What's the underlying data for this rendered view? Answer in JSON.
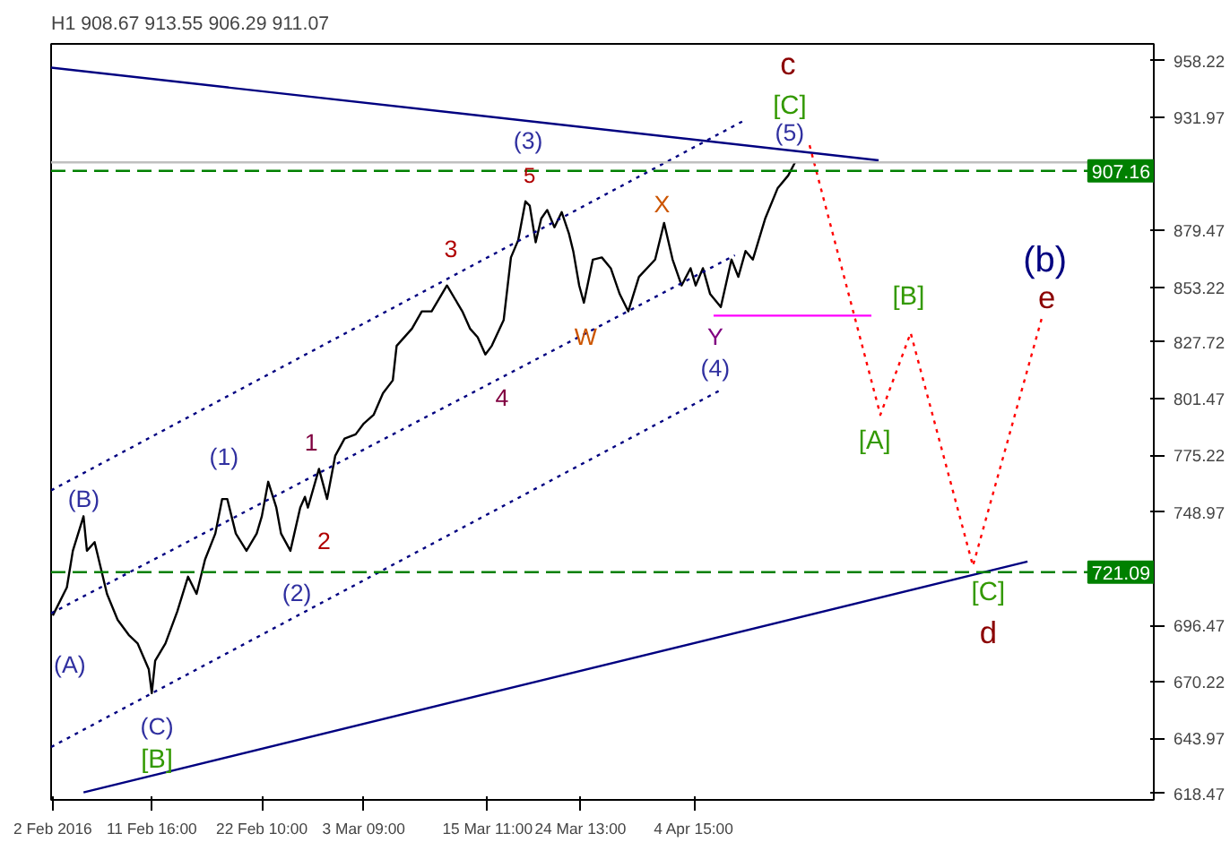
{
  "chart_data": {
    "type": "line",
    "title": "H1  908.67 913.55 906.29 911.07",
    "xlim": [
      "2016-02-01T20:00",
      "2016-05-19T13:00"
    ],
    "ylim": [
      615.5,
      966
    ],
    "xticks": [
      {
        "value": "2016-02-02",
        "label": "2 Feb 2016"
      },
      {
        "value": "2016-02-11T16:00",
        "label": "11 Feb 16:00"
      },
      {
        "value": "2016-02-22T10:00",
        "label": "22 Feb 10:00"
      },
      {
        "value": "2016-03-03T09:00",
        "label": "3 Mar 09:00"
      },
      {
        "value": "2016-03-15T11:00",
        "label": "15 Mar 11:00"
      },
      {
        "value": "2016-03-24T13:00",
        "label": "24 Mar 13:00"
      },
      {
        "value": "2016-04-04T15:00",
        "label": "4 Apr 15:00"
      }
    ],
    "yticks": [
      958.22,
      931.97,
      879.47,
      853.22,
      827.72,
      801.47,
      775.22,
      748.97,
      696.47,
      670.22,
      643.97,
      618.47
    ],
    "grid": false,
    "series": [
      {
        "color": "#000000",
        "line_style": "solid",
        "x": [
          "2016-02-02T00:00",
          "2016-02-03T09:00",
          "2016-02-03T23:00",
          "2016-02-05T00:00",
          "2016-02-05T08:00",
          "2016-02-06T02:00",
          "2016-02-07T07:00",
          "2016-02-08T08:00",
          "2016-02-09T10:00",
          "2016-02-10T07:00",
          "2016-02-11T09:00",
          "2016-02-11T16:00",
          "2016-02-12T00:00",
          "2016-02-13T00:00",
          "2016-02-14T04:00",
          "2016-02-15T05:00",
          "2016-02-16T01:00",
          "2016-02-16T21:00",
          "2016-02-17T21:00",
          "2016-02-18T13:00",
          "2016-02-19T01:00",
          "2016-02-19T21:00",
          "2016-02-20T22:00",
          "2016-02-21T22:00",
          "2016-02-22T10:00",
          "2016-02-23T01:00",
          "2016-02-23T20:00",
          "2016-02-24T07:00",
          "2016-02-25T05:00",
          "2016-02-26T04:00",
          "2016-02-26T15:00",
          "2016-02-26T22:00",
          "2016-02-28T00:00",
          "2016-02-28T19:00",
          "2016-02-29T14:00",
          "2016-03-01T12:00",
          "2016-03-02T14:00",
          "2016-03-03T09:00",
          "2016-03-04T08:00",
          "2016-03-05T06:00",
          "2016-03-06T05:00",
          "2016-03-06T14:00",
          "2016-03-08T02:00",
          "2016-03-09T01:00",
          "2016-03-10T00:00",
          "2016-03-11T12:00",
          "2016-03-13T00:00",
          "2016-03-13T18:00",
          "2016-03-14T12:00",
          "2016-03-15T06:00",
          "2016-03-15T21:00",
          "2016-03-17T01:00",
          "2016-03-17T18:00",
          "2016-03-18T11:00",
          "2016-03-19T04:00",
          "2016-03-19T14:00",
          "2016-03-20T04:00",
          "2016-03-20T17:00",
          "2016-03-21T07:00",
          "2016-03-22T00:00",
          "2016-03-22T17:00",
          "2016-03-23T10:00",
          "2016-03-23T20:00",
          "2016-03-24T10:00",
          "2016-03-24T21:00",
          "2016-03-25T18:00",
          "2016-03-26T15:00",
          "2016-03-27T12:00",
          "2016-03-28T09:00",
          "2016-03-29T05:00",
          "2016-03-30T06:00",
          "2016-03-31T20:00",
          "2016-04-01T17:00",
          "2016-04-02T13:00",
          "2016-04-03T10:00",
          "2016-04-04T07:00",
          "2016-04-04T19:00",
          "2016-04-05T12:00",
          "2016-04-06T05:00",
          "2016-04-07T06:00",
          "2016-04-08T07:00",
          "2016-04-08T23:00",
          "2016-04-09T16:00",
          "2016-04-10T09:00",
          "2016-04-11T14:00",
          "2016-04-12T19:00",
          "2016-04-13T20:00",
          "2016-04-14T12:00"
        ],
        "values": [
          701,
          714,
          731,
          747,
          731,
          735,
          711,
          699,
          692,
          688,
          676,
          665,
          680,
          688,
          703,
          719,
          711,
          727,
          739,
          755,
          755,
          739,
          731,
          739,
          747,
          763,
          751,
          739,
          731,
          751,
          756,
          751,
          769,
          755,
          775,
          783,
          785,
          790,
          794,
          804,
          810,
          826,
          834,
          842,
          842,
          854,
          842,
          834,
          830,
          822,
          826,
          838,
          867,
          875,
          893,
          891,
          874,
          885,
          889,
          881,
          888,
          878,
          870,
          854,
          846,
          866,
          867,
          862,
          850,
          842,
          858,
          866,
          883,
          866,
          854,
          862,
          854,
          862,
          850,
          844,
          866,
          858,
          870,
          866,
          885,
          899,
          905,
          911.07
        ]
      },
      {
        "color": "#000080",
        "line_style": "solid",
        "x": [
          "2016-02-01T20:00",
          "2016-04-22T16:00"
        ],
        "values": [
          955,
          912
        ]
      },
      {
        "color": "#000080",
        "line_style": "solid",
        "x": [
          "2016-02-05T00:00",
          "2016-05-07T05:00"
        ],
        "values": [
          619,
          726
        ]
      },
      {
        "color": "#000080",
        "line_style": "dotted",
        "x": [
          "2016-02-01T20:00",
          "2016-04-09T08:00"
        ],
        "values": [
          759,
          930
        ]
      },
      {
        "color": "#000080",
        "line_style": "dotted",
        "x": [
          "2016-02-01T20:00",
          "2016-04-08T15:00"
        ],
        "values": [
          702,
          868
        ]
      },
      {
        "color": "#000080",
        "line_style": "dotted",
        "x": [
          "2016-02-01T20:00",
          "2016-04-07T10:00"
        ],
        "values": [
          640,
          806
        ]
      },
      {
        "color": "#ff00ff",
        "line_style": "solid",
        "x": [
          "2016-04-06T13:00",
          "2016-04-21T23:00"
        ],
        "values": [
          840,
          840
        ]
      },
      {
        "color": "#ff0000",
        "line_style": "dotted",
        "x": [
          "2016-04-15T22:00",
          "2016-04-22T20:00",
          "2016-04-25T19:00",
          "2016-05-01T21:00",
          "2016-05-08T16:00"
        ],
        "values": [
          919,
          794,
          832,
          724,
          840
        ]
      }
    ],
    "ref_lines": [
      {
        "axis": "y",
        "value": 911.07,
        "label": null,
        "color": "#c0c0c0",
        "line_style": "solid"
      },
      {
        "axis": "y",
        "value": 907.16,
        "label": "907.16",
        "color": "#008000",
        "line_style": "dashed"
      },
      {
        "axis": "y",
        "value": 721.09,
        "label": "721.09",
        "color": "#008000",
        "line_style": "dashed"
      }
    ],
    "annotations": [
      "c",
      "[C]",
      "(5)",
      "(3)",
      "5",
      "3",
      "X",
      "W",
      "Y",
      "(4)",
      "4",
      "[B]",
      "(b)",
      "e",
      "[A]",
      "(1)",
      "1",
      "2",
      "(B)",
      "(2)",
      "(A)",
      "(C)",
      "[B]",
      "[C]",
      "d"
    ]
  }
}
